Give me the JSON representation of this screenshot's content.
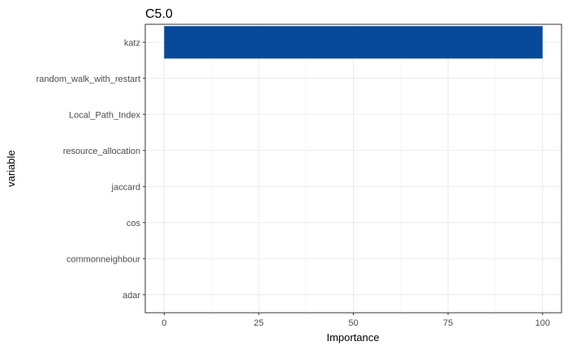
{
  "chart_data": {
    "type": "bar",
    "orientation": "horizontal",
    "title": "C5.0",
    "xlabel": "Importance",
    "ylabel": "variable",
    "categories": [
      "katz",
      "random_walk_with_restart",
      "Local_Path_Index",
      "resource_allocation",
      "jaccard",
      "cos",
      "commonneighbour",
      "adar"
    ],
    "values": [
      100,
      0,
      0,
      0,
      0,
      0,
      0,
      0
    ],
    "xlim": [
      -5,
      105
    ],
    "xticks": [
      0,
      25,
      50,
      75,
      100
    ],
    "xtick_labels": [
      "0",
      "25",
      "50",
      "75",
      "100"
    ],
    "grid": true,
    "bar_color": "#08499a"
  }
}
